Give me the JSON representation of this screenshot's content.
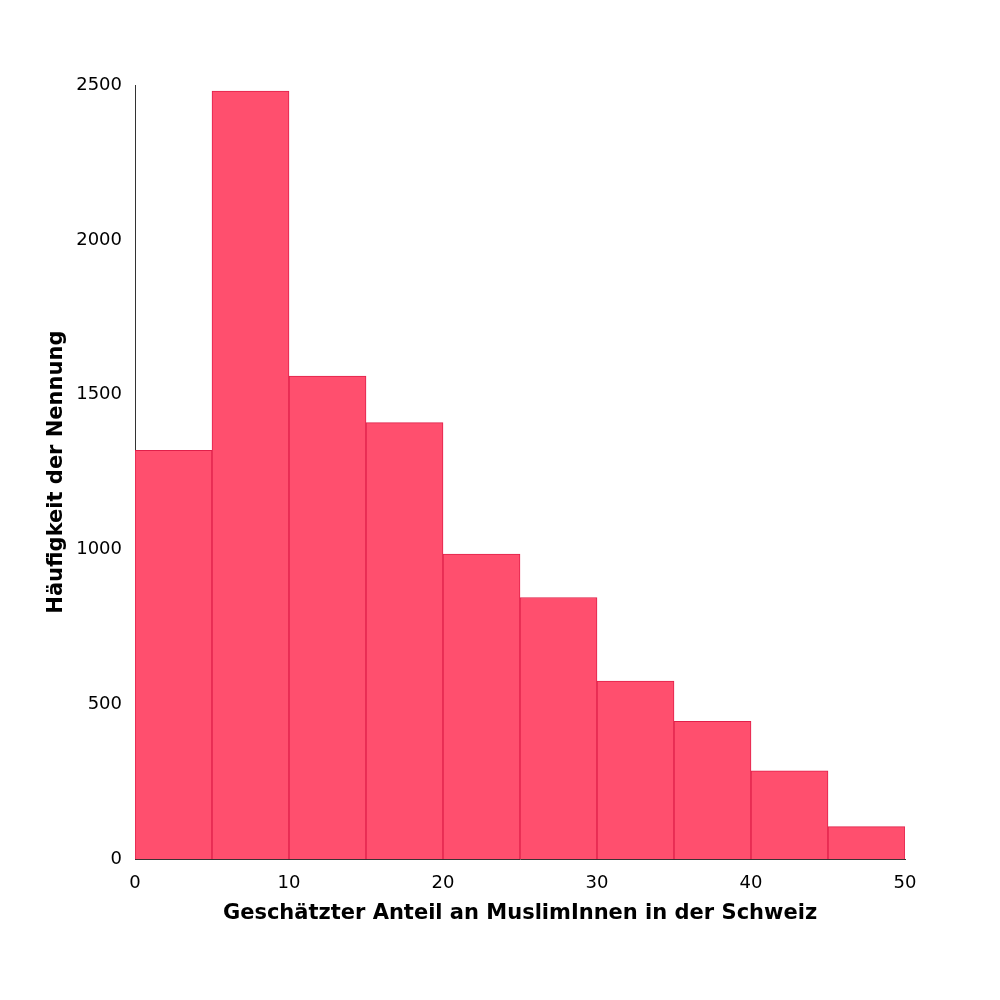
{
  "chart_data": {
    "type": "histogram",
    "x_label": "Geschätzter Anteil an MuslimInnen in der Schweiz",
    "y_label": "Häufigkeit der Nennung",
    "bins": [
      0,
      5,
      10,
      15,
      20,
      25,
      30,
      35,
      40,
      45,
      50
    ],
    "values": [
      1320,
      2480,
      1560,
      1410,
      985,
      845,
      575,
      445,
      285,
      105
    ],
    "color": "#ff4f6e",
    "xlim": [
      0,
      50
    ],
    "xticks": [
      0,
      10,
      20,
      30,
      40,
      50
    ],
    "ylim": [
      0,
      2500
    ],
    "yticks": [
      0,
      500,
      1000,
      1500,
      2000,
      2500
    ],
    "grid": false
  }
}
